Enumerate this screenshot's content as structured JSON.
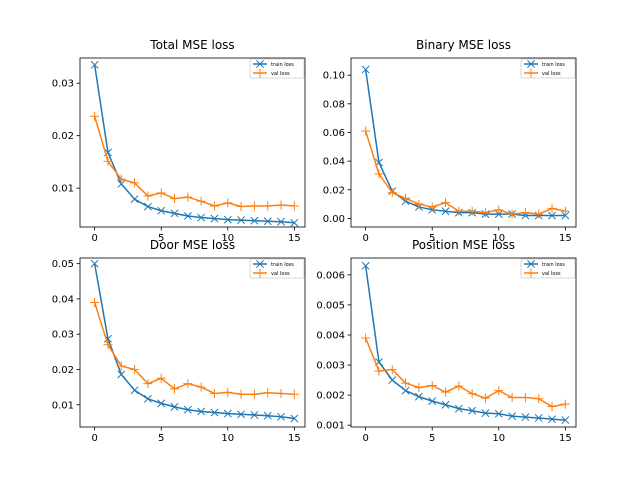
{
  "chart_data": [
    {
      "type": "line",
      "title": "Total MSE loss",
      "xlabel": "",
      "ylabel": "",
      "x": [
        0,
        1,
        2,
        3,
        4,
        5,
        6,
        7,
        8,
        9,
        10,
        11,
        12,
        13,
        14,
        15
      ],
      "xlim": [
        -1.1,
        15.8
      ],
      "ylim": [
        0.0026,
        0.0348
      ],
      "xticks": [
        0,
        5,
        10,
        15
      ],
      "yticks": [
        0.01,
        0.02,
        0.03
      ],
      "ytick_labels": [
        "0.01",
        "0.02",
        "0.03"
      ],
      "grid": false,
      "legend_position": "top-right",
      "series": [
        {
          "name": "train loss",
          "color": "#1f77b4",
          "marker": "x",
          "values": [
            0.0335,
            0.0168,
            0.0108,
            0.0079,
            0.0065,
            0.0057,
            0.0052,
            0.0047,
            0.0044,
            0.0042,
            0.004,
            0.0039,
            0.0038,
            0.0037,
            0.0036,
            0.0034
          ]
        },
        {
          "name": "val loss",
          "color": "#ff7f0e",
          "marker": "+",
          "values": [
            0.0237,
            0.0151,
            0.0117,
            0.011,
            0.0085,
            0.0091,
            0.008,
            0.0083,
            0.0075,
            0.0066,
            0.0072,
            0.0065,
            0.0066,
            0.0066,
            0.0068,
            0.0066
          ]
        }
      ]
    },
    {
      "type": "line",
      "title": "Binary MSE loss",
      "xlabel": "",
      "ylabel": "",
      "x": [
        0,
        1,
        2,
        3,
        4,
        5,
        6,
        7,
        8,
        9,
        10,
        11,
        12,
        13,
        14,
        15
      ],
      "xlim": [
        -1.1,
        15.8
      ],
      "ylim": [
        -0.006,
        0.112
      ],
      "xticks": [
        0,
        5,
        10,
        15
      ],
      "yticks": [
        0.0,
        0.02,
        0.04,
        0.06,
        0.08,
        0.1
      ],
      "ytick_labels": [
        "0.00",
        "0.02",
        "0.04",
        "0.06",
        "0.08",
        "0.10"
      ],
      "grid": false,
      "legend_position": "top-right",
      "series": [
        {
          "name": "train loss",
          "color": "#1f77b4",
          "marker": "x",
          "values": [
            0.104,
            0.039,
            0.019,
            0.012,
            0.008,
            0.006,
            0.005,
            0.004,
            0.004,
            0.003,
            0.003,
            0.003,
            0.002,
            0.002,
            0.002,
            0.002
          ]
        },
        {
          "name": "val loss",
          "color": "#ff7f0e",
          "marker": "+",
          "values": [
            0.061,
            0.031,
            0.018,
            0.014,
            0.01,
            0.008,
            0.011,
            0.005,
            0.005,
            0.004,
            0.006,
            0.003,
            0.004,
            0.003,
            0.007,
            0.005
          ]
        }
      ]
    },
    {
      "type": "line",
      "title": "Door MSE loss",
      "xlabel": "",
      "ylabel": "",
      "x": [
        0,
        1,
        2,
        3,
        4,
        5,
        6,
        7,
        8,
        9,
        10,
        11,
        12,
        13,
        14,
        15
      ],
      "xlim": [
        -1.1,
        15.8
      ],
      "ylim": [
        0.0037,
        0.0516
      ],
      "xticks": [
        0,
        5,
        10,
        15
      ],
      "yticks": [
        0.01,
        0.02,
        0.03,
        0.04,
        0.05
      ],
      "ytick_labels": [
        "0.01",
        "0.02",
        "0.03",
        "0.04",
        "0.05"
      ],
      "grid": false,
      "legend_position": "top-right",
      "series": [
        {
          "name": "train loss",
          "color": "#1f77b4",
          "marker": "x",
          "values": [
            0.05,
            0.0287,
            0.0186,
            0.0141,
            0.0117,
            0.0104,
            0.0094,
            0.0086,
            0.0081,
            0.0078,
            0.0075,
            0.0073,
            0.0071,
            0.0069,
            0.0066,
            0.0061
          ]
        },
        {
          "name": "val loss",
          "color": "#ff7f0e",
          "marker": "+",
          "values": [
            0.039,
            0.027,
            0.021,
            0.02,
            0.016,
            0.0175,
            0.0145,
            0.016,
            0.015,
            0.0132,
            0.0135,
            0.013,
            0.013,
            0.0134,
            0.0132,
            0.013
          ]
        }
      ]
    },
    {
      "type": "line",
      "title": "Position MSE loss",
      "xlabel": "",
      "ylabel": "",
      "x": [
        0,
        1,
        2,
        3,
        4,
        5,
        6,
        7,
        8,
        9,
        10,
        11,
        12,
        13,
        14,
        15
      ],
      "xlim": [
        -1.1,
        15.8
      ],
      "ylim": [
        0.00094,
        0.00656
      ],
      "xticks": [
        0,
        5,
        10,
        15
      ],
      "yticks": [
        0.001,
        0.002,
        0.003,
        0.004,
        0.005,
        0.006
      ],
      "ytick_labels": [
        "0.001",
        "0.002",
        "0.003",
        "0.004",
        "0.005",
        "0.006"
      ],
      "grid": false,
      "legend_position": "top-right",
      "series": [
        {
          "name": "train loss",
          "color": "#1f77b4",
          "marker": "x",
          "values": [
            0.0063,
            0.0031,
            0.0025,
            0.00215,
            0.00195,
            0.0018,
            0.00168,
            0.00155,
            0.00148,
            0.0014,
            0.00138,
            0.0013,
            0.00127,
            0.00124,
            0.0012,
            0.00117
          ]
        },
        {
          "name": "val loss",
          "color": "#ff7f0e",
          "marker": "+",
          "values": [
            0.0039,
            0.0028,
            0.00285,
            0.0024,
            0.00225,
            0.00232,
            0.0021,
            0.0023,
            0.00205,
            0.0019,
            0.00215,
            0.00192,
            0.00192,
            0.00188,
            0.00162,
            0.0017
          ]
        }
      ]
    }
  ]
}
